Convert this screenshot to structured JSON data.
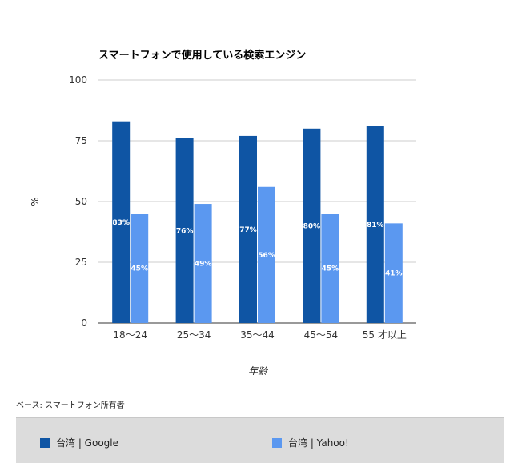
{
  "chart_data": {
    "type": "bar",
    "title": "スマートフォンで使用している検索エンジン",
    "xlabel": "年齢",
    "ylabel": "%",
    "categories": [
      "18〜24",
      "25〜34",
      "35〜44",
      "45〜54",
      "55 才以上"
    ],
    "ylim": [
      0,
      100
    ],
    "yticks": [
      0,
      25,
      50,
      75,
      100
    ],
    "grid": true,
    "legend_position": "bottom",
    "series": [
      {
        "name": "台湾 | Google",
        "values": [
          83,
          76,
          77,
          80,
          81
        ],
        "labels": [
          "83%",
          "76%",
          "77%",
          "80%",
          "81%"
        ],
        "color": "#0f55a4"
      },
      {
        "name": "台湾 | Yahoo!",
        "values": [
          45,
          49,
          56,
          45,
          41
        ],
        "labels": [
          "45%",
          "49%",
          "56%",
          "45%",
          "41%"
        ],
        "color": "#5b98f0"
      }
    ]
  },
  "footer": {
    "base_note": "ベース: スマートフォン所有者"
  }
}
